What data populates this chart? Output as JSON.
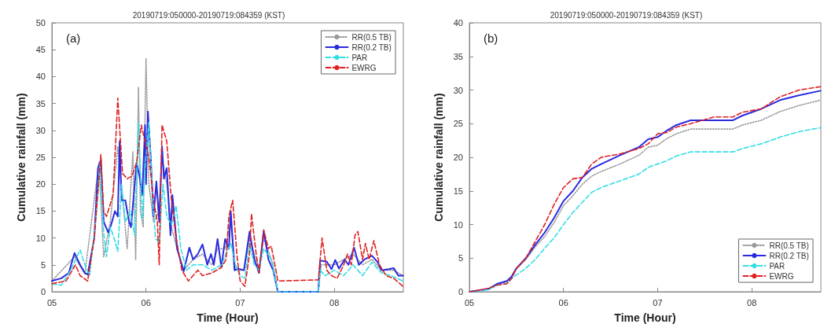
{
  "chart_data": [
    {
      "type": "line",
      "title": "20190719:050000-20190719:084359 (KST)",
      "xlabel": "Time (Hour)",
      "ylabel": "Cumulative rainfall (mm)",
      "annotations": [
        "(a)"
      ],
      "legend": "top right",
      "grid": false,
      "xlim": [
        5,
        8.7333
      ],
      "xticks": [
        {
          "value": 5,
          "label": "05"
        },
        {
          "value": 6,
          "label": "06"
        },
        {
          "value": 7,
          "label": "07"
        },
        {
          "value": 8,
          "label": "08"
        }
      ],
      "ylim": [
        0,
        50
      ],
      "yticks": [
        0,
        5,
        10,
        15,
        20,
        25,
        30,
        35,
        40,
        45,
        50
      ],
      "series": [
        {
          "name": "RR(0.5 TB)",
          "color": "#9a9a9a",
          "line_style": "dotted",
          "x": [
            5.0,
            5.24,
            5.35,
            5.5,
            5.55,
            5.62,
            5.7,
            5.8,
            5.86,
            5.89,
            5.92,
            5.94,
            5.97,
            6.0,
            6.03,
            6.08,
            6.14,
            6.17,
            6.22,
            6.27,
            6.33,
            6.4,
            6.5,
            6.6,
            6.7,
            6.76,
            6.84,
            6.9,
            6.95,
            7.04,
            7.1,
            7.2,
            7.25,
            7.35,
            7.4,
            7.83,
            7.86,
            8.0,
            8.2,
            8.3,
            8.4,
            8.5,
            8.63,
            8.73
          ],
          "values": [
            2,
            6.5,
            3.3,
            24,
            6.5,
            13,
            27,
            8,
            26,
            6,
            38,
            15,
            12,
            43.3,
            20,
            13,
            15,
            25,
            20,
            12,
            8,
            4,
            6,
            7,
            5,
            8,
            8,
            13,
            4,
            4,
            10,
            4,
            10,
            5,
            0,
            0,
            5,
            5,
            7,
            5,
            6,
            4,
            4,
            3
          ]
        },
        {
          "name": "RR(0.2 TB)",
          "color": "#2a2ae0",
          "line_style": "solid",
          "x": [
            5.0,
            5.1,
            5.18,
            5.24,
            5.3,
            5.35,
            5.38,
            5.45,
            5.49,
            5.52,
            5.55,
            5.6,
            5.63,
            5.67,
            5.7,
            5.72,
            5.74,
            5.78,
            5.82,
            5.84,
            5.9,
            5.93,
            5.96,
            5.99,
            6.0,
            6.02,
            6.05,
            6.08,
            6.11,
            6.14,
            6.17,
            6.19,
            6.22,
            6.26,
            6.28,
            6.33,
            6.4,
            6.46,
            6.5,
            6.55,
            6.6,
            6.65,
            6.69,
            6.72,
            6.76,
            6.8,
            6.84,
            6.88,
            6.9,
            6.94,
            6.98,
            7.04,
            7.1,
            7.15,
            7.2,
            7.25,
            7.3,
            7.35,
            7.4,
            7.83,
            7.85,
            7.92,
            7.97,
            8.01,
            8.05,
            8.11,
            8.15,
            8.21,
            8.26,
            8.32,
            8.4,
            8.46,
            8.5,
            8.58,
            8.63,
            8.68,
            8.73
          ],
          "values": [
            2,
            2.5,
            3.5,
            7.2,
            5,
            3.5,
            3.2,
            10,
            23,
            24.5,
            13,
            11,
            12.5,
            15,
            14,
            28,
            17,
            17,
            13,
            12,
            24,
            21.5,
            18,
            31,
            20,
            33.5,
            25,
            14,
            20.5,
            13,
            27,
            21,
            23,
            10.5,
            18,
            8,
            3.8,
            8.2,
            6,
            7,
            8.8,
            5,
            7,
            5,
            9.8,
            4.5,
            9.8,
            8,
            15,
            4,
            4.3,
            4,
            11.2,
            6,
            3.5,
            11.3,
            6,
            4,
            0,
            0,
            5.8,
            5.6,
            4.2,
            5.9,
            4.3,
            6,
            5,
            8.2,
            5,
            6,
            6.7,
            5.5,
            4,
            4.2,
            4.4,
            3,
            3
          ]
        },
        {
          "name": "PAR",
          "color": "#33dde6",
          "line_style": "dashed",
          "x": [
            5.0,
            5.1,
            5.2,
            5.3,
            5.35,
            5.4,
            5.47,
            5.51,
            5.55,
            5.58,
            5.62,
            5.66,
            5.7,
            5.74,
            5.78,
            5.83,
            5.88,
            5.92,
            5.96,
            5.99,
            6.03,
            6.07,
            6.1,
            6.14,
            6.18,
            6.22,
            6.27,
            6.32,
            6.37,
            6.43,
            6.5,
            6.6,
            6.7,
            6.8,
            6.9,
            6.95,
            7.0,
            7.05,
            7.1,
            7.15,
            7.2,
            7.25,
            7.33,
            7.4,
            7.83,
            7.85,
            7.9,
            8.0,
            8.1,
            8.2,
            8.3,
            8.4,
            8.5,
            8.6,
            8.73
          ],
          "values": [
            1.5,
            1.2,
            4,
            7.8,
            5,
            3,
            14,
            24,
            11,
            6.5,
            12,
            10,
            7.5,
            20,
            13,
            15,
            10.5,
            31.5,
            13.5,
            23,
            31.5,
            18,
            10,
            9,
            20,
            14,
            12.5,
            16,
            8,
            4,
            5,
            5,
            4,
            5,
            9,
            5,
            3,
            2.5,
            9,
            5,
            4,
            8,
            6,
            0,
            0,
            4,
            3,
            4,
            3,
            5,
            3,
            5.5,
            3.5,
            3,
            2
          ]
        },
        {
          "name": "EWRG",
          "color": "#e02020",
          "line_style": "dashed",
          "x": [
            5.0,
            5.15,
            5.25,
            5.3,
            5.38,
            5.45,
            5.52,
            5.55,
            5.58,
            5.65,
            5.7,
            5.75,
            5.8,
            5.85,
            5.9,
            5.95,
            6.0,
            6.03,
            6.08,
            6.12,
            6.14,
            6.17,
            6.22,
            6.27,
            6.32,
            6.38,
            6.45,
            6.55,
            6.6,
            6.7,
            6.8,
            6.85,
            6.88,
            6.92,
            6.97,
            7.0,
            7.05,
            7.1,
            7.12,
            7.17,
            7.2,
            7.25,
            7.3,
            7.33,
            7.38,
            7.4,
            7.83,
            7.87,
            7.92,
            7.97,
            8.03,
            8.1,
            8.14,
            8.18,
            8.22,
            8.25,
            8.3,
            8.33,
            8.37,
            8.42,
            8.48,
            8.55,
            8.63,
            8.73
          ],
          "values": [
            1.5,
            2,
            5,
            3,
            2,
            10,
            25.5,
            15,
            14,
            18,
            36,
            22,
            21,
            21.5,
            24,
            31,
            27,
            25,
            17,
            13,
            5,
            31,
            28,
            17,
            10,
            4,
            2,
            4,
            3,
            3.5,
            4.5,
            6,
            14,
            17,
            6,
            2,
            1,
            7,
            14.5,
            7,
            3.5,
            11.5,
            8,
            8.5,
            4,
            2,
            2.2,
            10,
            4,
            3,
            2.5,
            5,
            7,
            5,
            10.5,
            11.2,
            6,
            9,
            6,
            9.5,
            5,
            3,
            2.5,
            1
          ]
        }
      ]
    },
    {
      "type": "line",
      "title": "20190719:050000-20190719:084359 (KST)",
      "xlabel": "Time (Hour)",
      "ylabel": "Cumulative rainfall (mm)",
      "annotations": [
        "(b)"
      ],
      "legend": "bottom right",
      "grid": false,
      "xlim": [
        5,
        8.7333
      ],
      "xticks": [
        {
          "value": 5,
          "label": "05"
        },
        {
          "value": 6,
          "label": "06"
        },
        {
          "value": 7,
          "label": "07"
        },
        {
          "value": 8,
          "label": "08"
        }
      ],
      "ylim": [
        0,
        40
      ],
      "yticks": [
        0,
        5,
        10,
        15,
        20,
        25,
        30,
        35,
        40
      ],
      "x": [
        5.0,
        5.2,
        5.3,
        5.4,
        5.45,
        5.5,
        5.6,
        5.7,
        5.8,
        5.9,
        6.0,
        6.1,
        6.2,
        6.3,
        6.4,
        6.6,
        6.8,
        6.9,
        7.0,
        7.1,
        7.2,
        7.35,
        7.6,
        7.8,
        7.9,
        8.1,
        8.3,
        8.5,
        8.73
      ],
      "series": [
        {
          "name": "RR(0.5 TB)",
          "color": "#9a9a9a",
          "line_style": "dotted",
          "values": [
            0,
            0.4,
            1.1,
            1.5,
            2.2,
            3.4,
            4.8,
            6.7,
            8.2,
            10.3,
            12.8,
            14.3,
            16,
            17.2,
            17.9,
            19,
            20.3,
            21.5,
            21.8,
            22.8,
            23.5,
            24.2,
            24.2,
            24.2,
            24.8,
            25.5,
            26.8,
            27.7,
            28.5
          ]
        },
        {
          "name": "RR(0.2 TB)",
          "color": "#2a2ae0",
          "line_style": "solid",
          "values": [
            0,
            0.4,
            1.2,
            1.6,
            2.3,
            3.5,
            5,
            7,
            8.8,
            11,
            13.5,
            15,
            17,
            18.3,
            19,
            20.3,
            21.5,
            22.7,
            23,
            24,
            24.8,
            25.5,
            25.5,
            25.5,
            26.2,
            27.2,
            28.5,
            29.2,
            29.9
          ]
        },
        {
          "name": "PAR",
          "color": "#33dde6",
          "line_style": "dashed",
          "values": [
            0,
            0.3,
            1,
            1.2,
            2,
            2.5,
            3.5,
            4.8,
            6.5,
            8,
            10,
            11.8,
            13.3,
            14.8,
            15.5,
            16.5,
            17.5,
            18.5,
            19,
            19.5,
            20.2,
            20.8,
            20.8,
            20.8,
            21.3,
            22,
            23,
            23.8,
            24.4
          ]
        },
        {
          "name": "EWRG",
          "color": "#e02020",
          "line_style": "dashed",
          "values": [
            0,
            0.5,
            1,
            1.2,
            2,
            3.5,
            5,
            7.5,
            10,
            13,
            15.5,
            16.8,
            17,
            19,
            20,
            20.5,
            21.3,
            22,
            23.5,
            23.7,
            24.5,
            25,
            26,
            26,
            26.7,
            27.2,
            29,
            30,
            30.5
          ]
        }
      ]
    }
  ]
}
